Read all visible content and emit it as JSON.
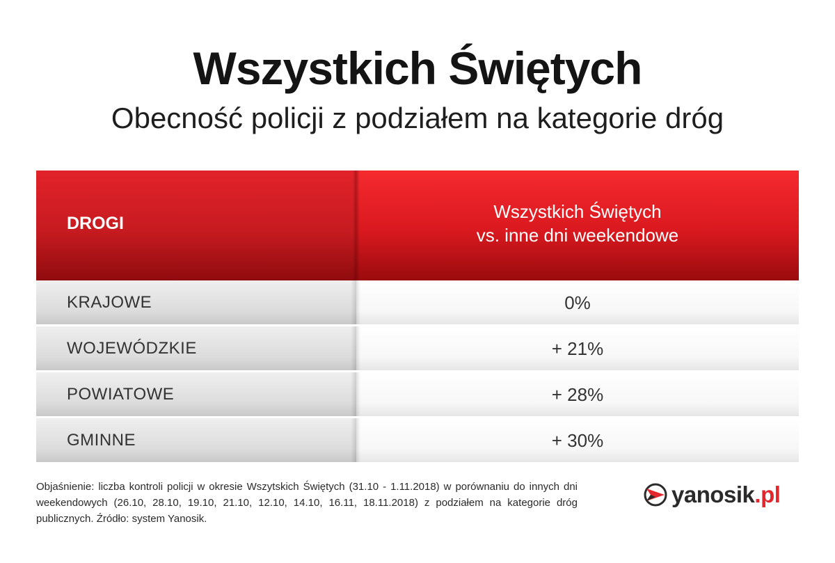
{
  "title": "Wszystkich Świętych",
  "subtitle": "Obecność policji z podziałem na kategorie dróg",
  "chart_data": {
    "type": "table",
    "columns": [
      "DROGI",
      "Wszystkich Świętych vs. inne dni weekendowe"
    ],
    "header": {
      "roads_label": "DROGI",
      "comparison_line1": "Wszystkich Świętych",
      "comparison_line2": "vs. inne dni weekendowe"
    },
    "rows": [
      {
        "road": "KRAJOWE",
        "change": "0%"
      },
      {
        "road": "WOJEWÓDZKIE",
        "change": "+ 21%"
      },
      {
        "road": "POWIATOWE",
        "change": "+ 28%"
      },
      {
        "road": "GMINNE",
        "change": "+ 30%"
      }
    ]
  },
  "footnote": "Objaśnienie: liczba kontroli policji w okresie Wszytskich Świętych (31.10 - 1.11.2018) w porównaniu do innych dni weekendowych (26.10, 28.10, 19.10, 21.10, 12.10, 14.10, 16.11, 18.11.2018) z podziałem na kategorie dróg publicznych. Źródło: system Yanosik.",
  "logo": {
    "name": "yanosik",
    "tld": ".pl",
    "icon": "yanosik-logo-icon"
  },
  "colors": {
    "header_red": "#d9191f",
    "header_red_dark": "#8f0b0e",
    "logo_red": "#e3262b"
  }
}
